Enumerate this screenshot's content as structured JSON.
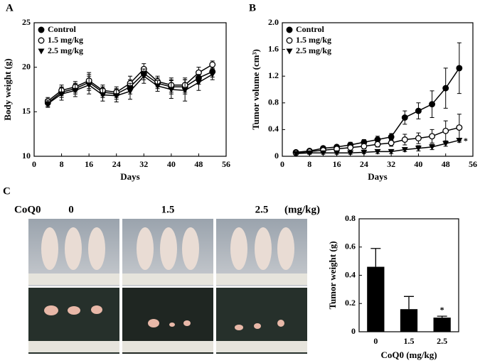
{
  "chart_data": [
    {
      "type": "line",
      "panel": "A",
      "xlabel": "Days",
      "ylabel": "Body weight (g)",
      "x": [
        4,
        8,
        12,
        16,
        20,
        24,
        28,
        32,
        36,
        40,
        44,
        48,
        52
      ],
      "xlim": [
        0,
        56
      ],
      "xticks": [
        0,
        8,
        16,
        24,
        32,
        40,
        48,
        56
      ],
      "ylim": [
        10,
        25
      ],
      "yticks": [
        10,
        15,
        20,
        25
      ],
      "legend": "upper left",
      "series": [
        {
          "name": "Control",
          "marker": "filled-circle",
          "color": "#000000",
          "values": [
            16.0,
            17.2,
            17.6,
            18.3,
            17.2,
            17.0,
            17.8,
            19.3,
            18.2,
            17.8,
            17.8,
            18.8,
            19.5
          ],
          "errors": [
            0.4,
            0.6,
            0.6,
            0.9,
            0.6,
            0.6,
            0.8,
            0.7,
            0.6,
            0.8,
            0.8,
            0.7,
            0.6
          ]
        },
        {
          "name": "1.5 mg/kg",
          "marker": "open-circle",
          "color": "#000000",
          "values": [
            16.2,
            17.4,
            17.8,
            18.5,
            17.4,
            17.2,
            18.2,
            19.8,
            18.4,
            18.0,
            18.0,
            19.4,
            20.3
          ],
          "errors": [
            0.4,
            0.6,
            0.6,
            0.9,
            0.6,
            0.6,
            0.8,
            0.6,
            0.6,
            0.8,
            0.8,
            0.6,
            0.4
          ]
        },
        {
          "name": "2.5 mg/kg",
          "marker": "filled-triangle-down",
          "color": "#000000",
          "values": [
            15.9,
            17.0,
            17.4,
            18.0,
            16.9,
            16.8,
            17.3,
            19.0,
            17.9,
            17.5,
            17.4,
            18.3,
            19.2
          ],
          "errors": [
            0.4,
            0.7,
            0.7,
            1.0,
            0.7,
            0.7,
            0.9,
            0.8,
            0.6,
            1.0,
            1.2,
            0.9,
            0.6
          ]
        }
      ]
    },
    {
      "type": "line",
      "panel": "B",
      "xlabel": "Days",
      "ylabel": "Tumor volume (cm³)",
      "annotation": "*",
      "x": [
        4,
        8,
        12,
        16,
        20,
        24,
        28,
        32,
        36,
        40,
        44,
        48,
        52
      ],
      "xlim": [
        0,
        56
      ],
      "xticks": [
        0,
        8,
        16,
        24,
        32,
        40,
        48,
        56
      ],
      "ylim": [
        0,
        2
      ],
      "yticks": [
        0,
        0.4,
        0.8,
        1.2,
        1.6,
        {
          "value": 2,
          "label": "2.0"
        }
      ],
      "legend": "upper left",
      "series": [
        {
          "name": "Control",
          "marker": "filled-circle",
          "color": "#000000",
          "values": [
            0.06,
            0.08,
            0.12,
            0.14,
            0.17,
            0.21,
            0.25,
            0.29,
            0.58,
            0.68,
            0.78,
            1.02,
            1.32
          ],
          "errors": [
            0.02,
            0.02,
            0.03,
            0.03,
            0.04,
            0.04,
            0.05,
            0.05,
            0.1,
            0.12,
            0.2,
            0.3,
            0.38
          ]
        },
        {
          "name": "1.5 mg/kg",
          "marker": "open-circle",
          "color": "#000000",
          "values": [
            0.05,
            0.07,
            0.09,
            0.11,
            0.13,
            0.15,
            0.18,
            0.2,
            0.25,
            0.27,
            0.3,
            0.38,
            0.43
          ],
          "errors": [
            0.02,
            0.02,
            0.02,
            0.03,
            0.03,
            0.04,
            0.04,
            0.05,
            0.08,
            0.08,
            0.1,
            0.15,
            0.2
          ]
        },
        {
          "name": "2.5 mg/kg",
          "marker": "filled-triangle-down",
          "color": "#000000",
          "values": [
            0.04,
            0.05,
            0.05,
            0.05,
            0.05,
            0.06,
            0.07,
            0.07,
            0.1,
            0.12,
            0.14,
            0.19,
            0.24
          ],
          "errors": [
            0.02,
            0.02,
            0.02,
            0.02,
            0.02,
            0.02,
            0.03,
            0.03,
            0.03,
            0.04,
            0.04,
            0.04,
            0.03
          ]
        }
      ]
    },
    {
      "type": "bar",
      "panel": "C",
      "xlabel": "CoQ0 (mg/kg)",
      "ylabel": "Tumor weight (g)",
      "annotation": "*",
      "categories": [
        "0",
        "1.5",
        "2.5"
      ],
      "values": [
        0.46,
        0.16,
        0.1
      ],
      "errors": [
        0.13,
        0.09,
        0.01
      ],
      "color": "#000000",
      "ylim": [
        0,
        0.8
      ],
      "yticks": [
        0,
        0.2,
        0.4,
        0.6,
        0.8
      ]
    }
  ],
  "photo_panel": {
    "dose_title": "CoQ0",
    "doses": [
      "0",
      "1.5",
      "2.5"
    ],
    "unit": "(mg/kg)"
  }
}
